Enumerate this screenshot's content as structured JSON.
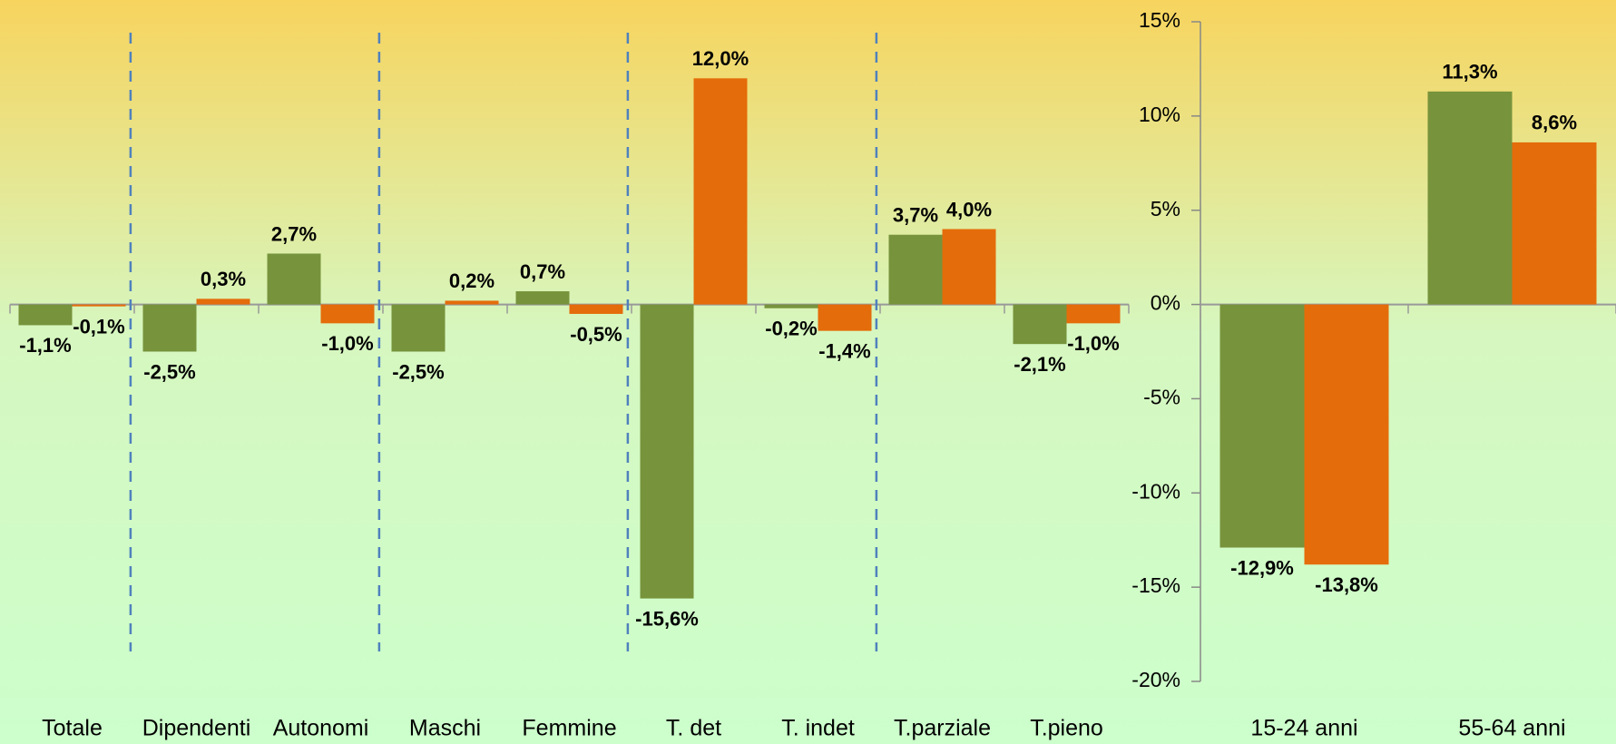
{
  "chart_data": [
    {
      "type": "bar",
      "categories": [
        "Totale",
        "Dipendenti",
        "Autonomi",
        "Maschi",
        "Femmine",
        "T. det",
        "T. indet",
        "T.parziale",
        "T.pieno"
      ],
      "series": [
        {
          "color": "#77933c",
          "values": [
            -1.1,
            -2.5,
            2.7,
            -2.5,
            0.7,
            -15.6,
            -0.2,
            3.7,
            -2.1
          ],
          "value_labels": [
            "-1,1%",
            "-2,5%",
            "2,7%",
            "-2,5%",
            "0,7%",
            "-15,6%",
            "-0,2%",
            "3,7%",
            "-2,1%"
          ]
        },
        {
          "color": "#e46c0a",
          "values": [
            -0.1,
            0.3,
            -1.0,
            0.2,
            -0.5,
            12.0,
            -1.4,
            4.0,
            -1.0
          ],
          "value_labels": [
            "-0,1%",
            "0,3%",
            "-1,0%",
            "0,2%",
            "-0,5%",
            "12,0%",
            "-1,4%",
            "4,0%",
            "-1,0%"
          ]
        }
      ],
      "ylim": [
        -20,
        15
      ]
    },
    {
      "type": "bar",
      "categories": [
        "15-24 anni",
        "55-64 anni"
      ],
      "series": [
        {
          "color": "#77933c",
          "values": [
            -12.9,
            11.3
          ],
          "value_labels": [
            "-12,9%",
            "11,3%"
          ]
        },
        {
          "color": "#e46c0a",
          "values": [
            -13.8,
            8.6
          ],
          "value_labels": [
            "-13,8%",
            "8,6%"
          ]
        }
      ],
      "ylim": [
        -20,
        15
      ],
      "yticks": [
        {
          "value": 15,
          "label": "15%"
        },
        {
          "value": 10,
          "label": "10%"
        },
        {
          "value": 5,
          "label": "5%"
        },
        {
          "value": 0,
          "label": "0%"
        },
        {
          "value": -5,
          "label": "-5%"
        },
        {
          "value": -10,
          "label": "-10%"
        },
        {
          "value": -15,
          "label": "-15%"
        },
        {
          "value": -20,
          "label": "-20%"
        }
      ]
    }
  ]
}
